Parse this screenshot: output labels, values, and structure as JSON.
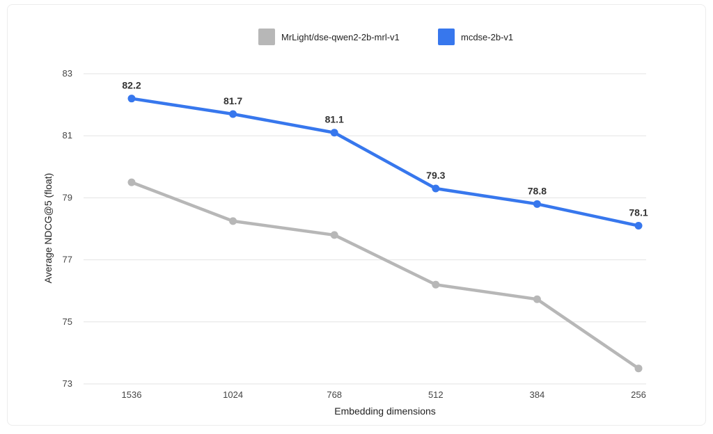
{
  "chart_data": {
    "type": "line",
    "categories": [
      "1536",
      "1024",
      "768",
      "512",
      "384",
      "256"
    ],
    "series": [
      {
        "name": "MrLight/dse-qwen2-2b-mrl-v1",
        "color": "#b7b7b7",
        "values": [
          79.5,
          78.25,
          77.8,
          76.2,
          75.73,
          73.5
        ],
        "show_labels": false
      },
      {
        "name": "mcdse-2b-v1",
        "color": "#3777ed",
        "values": [
          82.2,
          81.7,
          81.1,
          79.3,
          78.8,
          78.1
        ],
        "labels": [
          "82.2",
          "81.7",
          "81.1",
          "79.3",
          "78.8",
          "78.1"
        ],
        "show_labels": true
      }
    ],
    "xlabel": "Embedding dimensions",
    "ylabel": "Average NDCG@5 (float)",
    "ylim": [
      73,
      83
    ],
    "yticks": [
      "73",
      "75",
      "77",
      "79",
      "81",
      "83"
    ],
    "grid": true,
    "legend_position": "top"
  }
}
